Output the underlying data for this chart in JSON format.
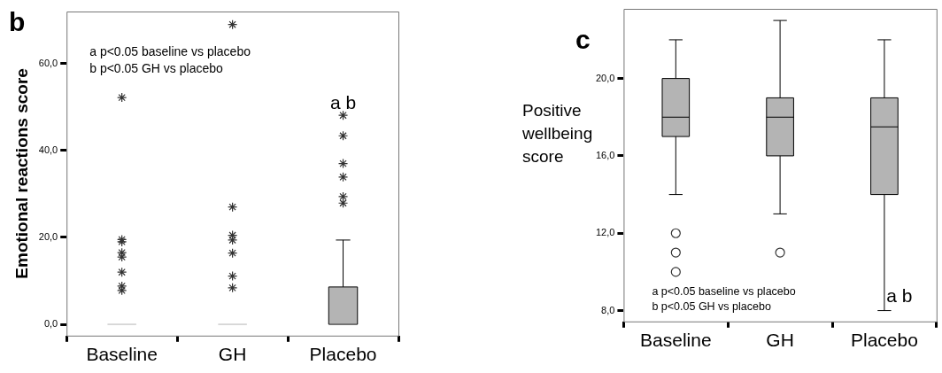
{
  "chart_data": [
    {
      "type": "box",
      "title": "b",
      "ylabel": "Emotional reactions score",
      "categories": [
        "Baseline",
        "GH",
        "Placebo"
      ],
      "color": "#b4b4b4",
      "marker": "star",
      "legend": false,
      "grid": false,
      "boxes": [
        {
          "low": 0,
          "q1": 0,
          "median": 0,
          "q3": 0,
          "high": 0,
          "outliers": [
            52.2,
            19.5,
            19,
            16.5,
            15.5,
            12,
            8.8,
            7.8
          ]
        },
        {
          "low": 0,
          "q1": 0,
          "median": 0,
          "q3": 0,
          "high": 0,
          "outliers": [
            69,
            27,
            20.5,
            19.4,
            16.4,
            11.1,
            8.4
          ]
        },
        {
          "low": 0,
          "q1": 0,
          "median": 0,
          "q3": 8.6,
          "high": 19.4,
          "outliers": [
            48.1,
            43.4,
            37,
            33.9,
            29.4,
            27.9
          ]
        }
      ],
      "ylim": [
        -2.6,
        72
      ],
      "yticks": [
        {
          "value": 0,
          "label": "0,0"
        },
        {
          "value": 20,
          "label": "20,0"
        },
        {
          "value": 40,
          "label": "40,0"
        },
        {
          "value": 60,
          "label": "60,0"
        }
      ],
      "annotations": [
        "a p<0.05 baseline vs placebo",
        "b p<0.05 GH vs placebo",
        "a b"
      ]
    },
    {
      "type": "box",
      "title": "c",
      "ylabel": "Positive wellbeing score",
      "categories": [
        "Baseline",
        "GH",
        "Placebo"
      ],
      "color": "#b4b4b4",
      "marker": "circle",
      "legend": false,
      "grid": false,
      "boxes": [
        {
          "low": 14,
          "q1": 17,
          "median": 18,
          "q3": 20,
          "high": 22,
          "outliers": [
            12,
            11,
            10
          ]
        },
        {
          "low": 13,
          "q1": 16,
          "median": 18,
          "q3": 19,
          "high": 23,
          "outliers": [
            11
          ]
        },
        {
          "low": 8,
          "q1": 14,
          "median": 17.5,
          "q3": 19,
          "high": 22
        }
      ],
      "ylim": [
        7.44,
        23.6
      ],
      "yticks": [
        {
          "value": 8,
          "label": "8,0"
        },
        {
          "value": 12,
          "label": "12,0"
        },
        {
          "value": 16,
          "label": "16,0"
        },
        {
          "value": 20,
          "label": "20,0"
        }
      ],
      "annotations": [
        "a p<0.05 baseline vs placebo",
        "b p<0.05 GH vs placebo",
        "a b"
      ]
    }
  ]
}
